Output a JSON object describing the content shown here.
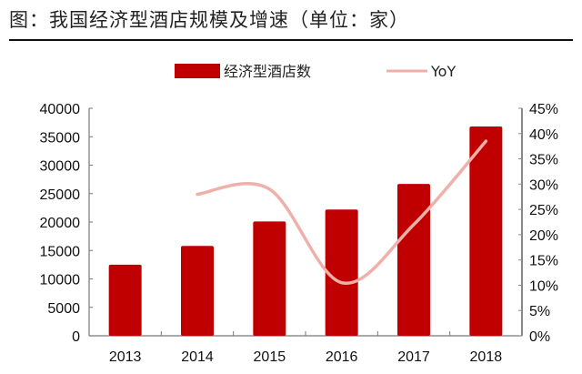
{
  "title": "图：我国经济型酒店规模及增速（单位：家）",
  "colors": {
    "bar": "#c00000",
    "line": "#f0b0aa",
    "axis": "#888888"
  },
  "legend": {
    "bar_label": "经济型酒店数",
    "line_label": "YoY"
  },
  "chart_data": {
    "type": "bar",
    "title": "我国经济型酒店规模及增速（单位：家）",
    "categories": [
      "2013",
      "2014",
      "2015",
      "2016",
      "2017",
      "2018"
    ],
    "series": [
      {
        "name": "经济型酒店数",
        "type": "bar",
        "axis": "left",
        "values": [
          12500,
          15800,
          20100,
          22200,
          26700,
          36800
        ]
      },
      {
        "name": "YoY",
        "type": "line",
        "axis": "right",
        "values": [
          null,
          0.28,
          0.29,
          0.105,
          0.22,
          0.385
        ]
      }
    ],
    "left_axis": {
      "ylim": [
        0,
        40000
      ],
      "ticks": [
        "0",
        "5000",
        "10000",
        "15000",
        "20000",
        "25000",
        "30000",
        "35000",
        "40000"
      ]
    },
    "right_axis": {
      "ylim": [
        0,
        0.45
      ],
      "ticks": [
        "0%",
        "5%",
        "10%",
        "15%",
        "20%",
        "25%",
        "30%",
        "35%",
        "40%",
        "45%"
      ]
    },
    "xlabel": "",
    "ylabel": "",
    "grid": false,
    "legend_position": "top"
  }
}
